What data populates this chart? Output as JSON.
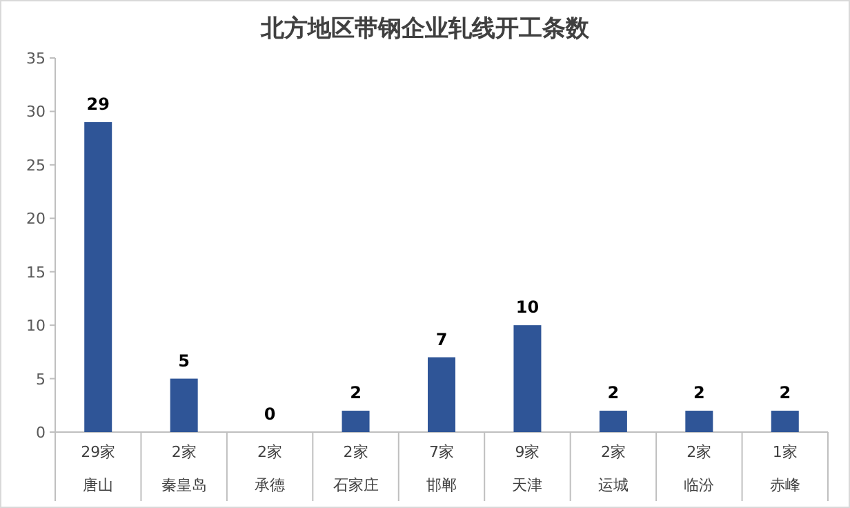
{
  "chart_data": {
    "type": "bar",
    "title": "北方地区带钢企业轧线开工条数",
    "categories": [
      "29家唐山",
      "2家秦皇岛",
      "2家承德",
      "2家石家庄",
      "7家邯郸",
      "9家天津",
      "2家运城",
      "2家临汾",
      "1家赤峰"
    ],
    "values": [
      29,
      5,
      0,
      2,
      7,
      10,
      2,
      2,
      2
    ],
    "color": "#2f5597",
    "ylim": [
      0,
      35
    ],
    "yticks": [
      0,
      5,
      10,
      15,
      20,
      25,
      30,
      35
    ],
    "grid": false,
    "data_labels": true
  }
}
